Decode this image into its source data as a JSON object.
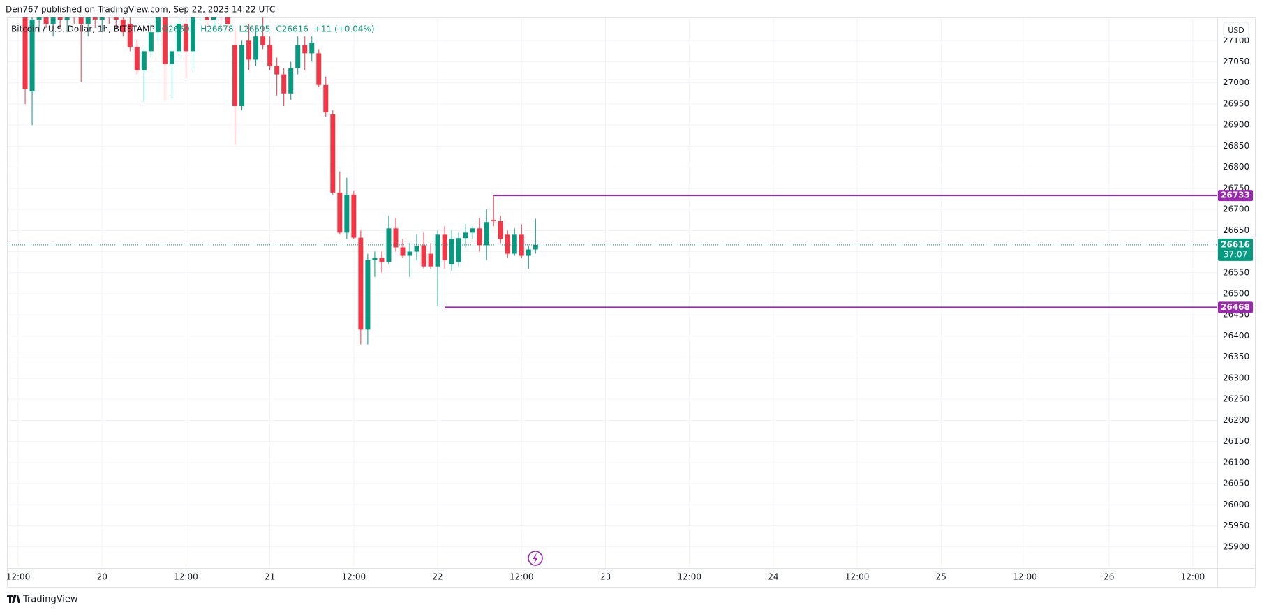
{
  "header": {
    "publisher": "Den767 published on TradingView.com, Sep 22, 2023 14:22 UTC"
  },
  "footer": {
    "brand": "TradingView"
  },
  "chart_data": {
    "type": "candlestick",
    "legend": {
      "symbol": "Bitcoin / U.S. Dollar, 1h, BITSTAMP",
      "open": "O26605",
      "high": "H26678",
      "low": "L26595",
      "close": "C26616",
      "change": "+11 (+0.04%)"
    },
    "currency": "USD",
    "up_color": "#089981",
    "down_color": "#f23645",
    "level_color": "#9c27b0",
    "grid": true,
    "x": [
      1,
      2,
      3,
      4,
      5,
      6,
      7,
      8,
      9,
      10,
      11,
      12,
      13,
      14,
      15,
      16,
      17,
      18,
      19,
      20,
      21,
      22,
      23,
      24,
      25,
      26,
      27,
      28,
      29,
      30,
      31,
      32,
      33,
      34,
      35,
      36,
      37,
      38,
      39,
      40,
      41,
      42,
      43,
      44,
      45,
      46,
      47,
      48,
      49,
      50,
      51,
      52,
      53,
      54,
      55,
      56,
      57,
      58,
      59,
      60,
      61,
      62,
      63,
      64,
      65,
      66,
      67,
      68,
      69,
      70,
      71,
      72,
      73,
      74
    ],
    "open": [
      27160,
      26980,
      27150,
      27170,
      27140,
      27160,
      27150,
      27180,
      27160,
      27140,
      27170,
      27150,
      27175,
      27160,
      27150,
      27140,
      27085,
      27030,
      27075,
      27120,
      27160,
      27045,
      27075,
      27140,
      27075,
      27160,
      27180,
      27150,
      27170,
      27160,
      27090,
      26945,
      27100,
      27055,
      27110,
      27090,
      27040,
      27020,
      26975,
      27035,
      27090,
      27070,
      27070,
      26995,
      26925,
      26740,
      26645,
      26735,
      26633,
      26415,
      26580,
      26585,
      26575,
      26655,
      26610,
      26590,
      26600,
      26615,
      26595,
      26565,
      26640,
      26570,
      26575,
      26632,
      26645,
      26655,
      26615,
      26675,
      26672,
      26640,
      26595,
      26640,
      26590,
      26605
    ],
    "high": [
      27190,
      27170,
      27190,
      27200,
      27180,
      27190,
      27200,
      27210,
      27200,
      27180,
      27200,
      27190,
      27200,
      27190,
      27180,
      27170,
      27100,
      27080,
      27140,
      27180,
      27190,
      27080,
      27150,
      27170,
      27170,
      27210,
      27200,
      27190,
      27200,
      27180,
      27130,
      27100,
      27140,
      27130,
      27160,
      27110,
      27060,
      27035,
      27050,
      27110,
      27110,
      27110,
      27080,
      27015,
      26935,
      26790,
      26775,
      26745,
      26650,
      26595,
      26600,
      26600,
      26685,
      26680,
      26630,
      26620,
      26640,
      26645,
      26620,
      26650,
      26660,
      26650,
      26645,
      26665,
      26660,
      26680,
      26700,
      26733,
      26685,
      26650,
      26655,
      26665,
      26615,
      26678
    ],
    "low": [
      26950,
      26900,
      27120,
      27130,
      27110,
      27130,
      27120,
      27140,
      27002,
      27110,
      27130,
      27120,
      27140,
      27130,
      27110,
      27075,
      27020,
      26955,
      27060,
      27100,
      26958,
      26960,
      27060,
      27010,
      27030,
      27140,
      27130,
      27130,
      27140,
      27120,
      26853,
      26935,
      27030,
      27040,
      27080,
      27030,
      26970,
      26945,
      26960,
      27020,
      27030,
      27050,
      26990,
      26920,
      26735,
      26640,
      26630,
      26630,
      26380,
      26380,
      26540,
      26550,
      26570,
      26600,
      26585,
      26540,
      26580,
      26560,
      26560,
      26470,
      26560,
      26555,
      26565,
      26610,
      26630,
      26600,
      26580,
      26660,
      26620,
      26585,
      26590,
      26585,
      26560,
      26595
    ],
    "close": [
      26985,
      27150,
      27170,
      27140,
      27160,
      27150,
      27180,
      27160,
      27140,
      27170,
      27150,
      27175,
      27160,
      27150,
      27120,
      27085,
      27030,
      27075,
      27120,
      27160,
      27045,
      27075,
      27140,
      27075,
      27160,
      27190,
      27150,
      27170,
      27160,
      27140,
      26945,
      27090,
      27055,
      27110,
      27090,
      27040,
      27020,
      26975,
      27035,
      27090,
      27070,
      27095,
      26995,
      26930,
      26740,
      26645,
      26735,
      26633,
      26415,
      26580,
      26585,
      26575,
      26655,
      26610,
      26590,
      26600,
      26613,
      26565,
      26565,
      26640,
      26580,
      26630,
      26632,
      26645,
      26655,
      26615,
      26670,
      26672,
      26630,
      26595,
      26640,
      26590,
      26605,
      26616
    ],
    "last_price": 26616,
    "countdown": "37:07",
    "levels": [
      {
        "value": 26733,
        "start": 68
      },
      {
        "value": 26468,
        "start": 61
      }
    ],
    "xlim": [
      -1.5,
      171.5
    ],
    "ylim": [
      25850,
      27155
    ],
    "xticks": [
      {
        "value": 0,
        "label": "12:00"
      },
      {
        "value": 12,
        "label": "20"
      },
      {
        "value": 24,
        "label": "12:00"
      },
      {
        "value": 36,
        "label": "21"
      },
      {
        "value": 48,
        "label": "12:00"
      },
      {
        "value": 60,
        "label": "22"
      },
      {
        "value": 72,
        "label": "12:00"
      },
      {
        "value": 84,
        "label": "23"
      },
      {
        "value": 96,
        "label": "12:00"
      },
      {
        "value": 108,
        "label": "24"
      },
      {
        "value": 120,
        "label": "12:00"
      },
      {
        "value": 132,
        "label": "25"
      },
      {
        "value": 144,
        "label": "12:00"
      },
      {
        "value": 156,
        "label": "26"
      },
      {
        "value": 168,
        "label": "12:00"
      }
    ],
    "yticks": [
      25900,
      25950,
      26000,
      26050,
      26100,
      26150,
      26200,
      26250,
      26300,
      26350,
      26400,
      26450,
      26500,
      26550,
      26600,
      26650,
      26700,
      26750,
      26800,
      26850,
      26900,
      26950,
      27000,
      27050,
      27100
    ]
  }
}
